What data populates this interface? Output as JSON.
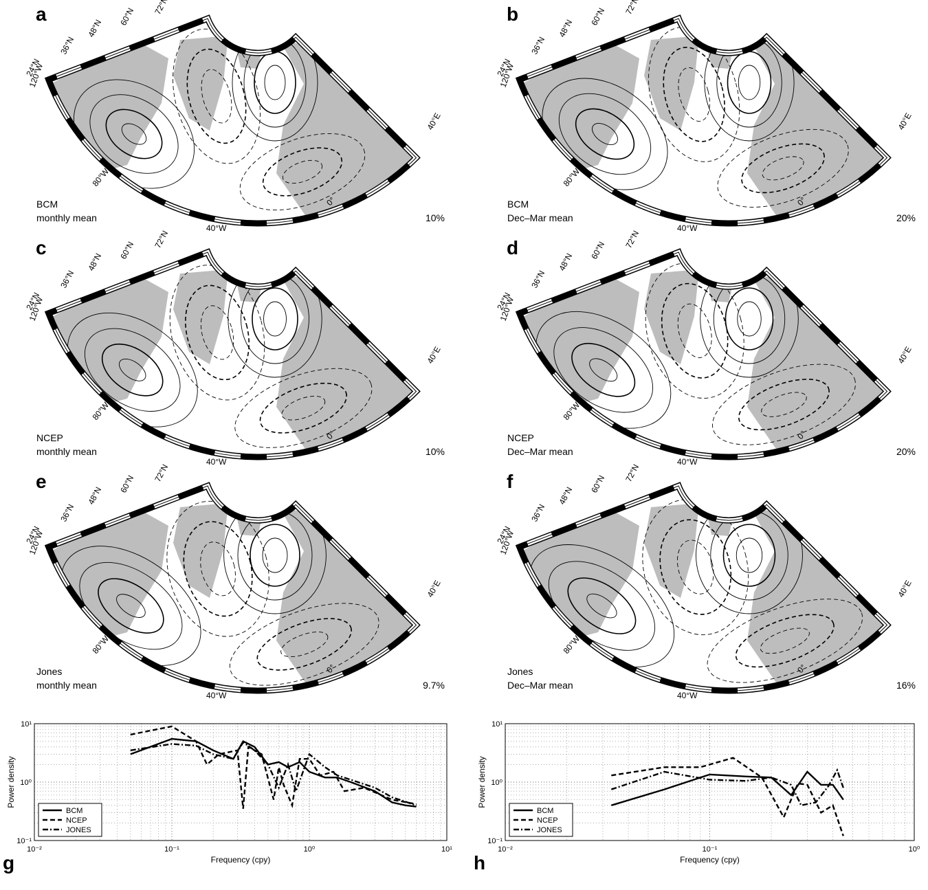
{
  "graticule": {
    "lat_labels": [
      "24°N",
      "36°N",
      "48°N",
      "60°N",
      "72°N"
    ],
    "lon_labels": [
      "120°W",
      "80°W",
      "40°W",
      "0°",
      "40°E"
    ]
  },
  "panels": [
    {
      "label": "a",
      "dataset": "BCM",
      "period": "monthly mean",
      "variance": "10%"
    },
    {
      "label": "b",
      "dataset": "BCM",
      "period": "Dec–Mar mean",
      "variance": "20%"
    },
    {
      "label": "c",
      "dataset": "NCEP",
      "period": "monthly mean",
      "variance": "10%"
    },
    {
      "label": "d",
      "dataset": "NCEP",
      "period": "Dec–Mar mean",
      "variance": "20%"
    },
    {
      "label": "e",
      "dataset": "Jones",
      "period": "monthly mean",
      "variance": "9.7%"
    },
    {
      "label": "f",
      "dataset": "Jones",
      "period": "Dec–Mar mean",
      "variance": "16%"
    }
  ],
  "chart_data": [
    {
      "type": "line",
      "panel_label": "g",
      "xlabel": "Frequency (cpy)",
      "ylabel": "Power density",
      "log": true,
      "grid": true,
      "xlim": [
        0.01,
        10
      ],
      "ylim": [
        0.1,
        10
      ],
      "xticks": [
        {
          "value": 0.01,
          "label": "10⁻²"
        },
        {
          "value": 0.1,
          "label": "10⁻¹"
        },
        {
          "value": 1,
          "label": "10⁰"
        },
        {
          "value": 10,
          "label": "10¹"
        }
      ],
      "yticks": [
        {
          "value": 0.1,
          "label": "10⁻¹"
        },
        {
          "value": 1,
          "label": "10⁰"
        },
        {
          "value": 10,
          "label": "10¹"
        }
      ],
      "series": [
        {
          "name": "BCM",
          "color": "#000000",
          "dash": "solid",
          "x": [
            0.05,
            0.1,
            0.15,
            0.2,
            0.28,
            0.33,
            0.4,
            0.5,
            0.6,
            0.7,
            0.85,
            1,
            1.3,
            1.6,
            2,
            3,
            4,
            5,
            6
          ],
          "values": [
            3,
            5.5,
            5,
            3.5,
            2.5,
            5,
            4,
            2,
            2.2,
            1.8,
            2.2,
            1.5,
            1.2,
            1.2,
            1,
            0.7,
            0.45,
            0.4,
            0.38
          ]
        },
        {
          "name": "NCEP",
          "color": "#000000",
          "dash": "dashed",
          "x": [
            0.05,
            0.1,
            0.15,
            0.18,
            0.22,
            0.3,
            0.33,
            0.36,
            0.45,
            0.55,
            0.6,
            0.65,
            0.75,
            0.85,
            1,
            1.2,
            1.5,
            1.8,
            2.5,
            4,
            6
          ],
          "values": [
            6.5,
            9,
            5,
            2,
            3,
            3.5,
            0.35,
            4,
            3,
            0.5,
            1.8,
            0.9,
            0.4,
            2.5,
            2.5,
            1.3,
            1.5,
            0.7,
            0.8,
            0.5,
            0.42
          ]
        },
        {
          "name": "JONES",
          "color": "#000000",
          "dash": "dashdot",
          "x": [
            0.05,
            0.1,
            0.15,
            0.2,
            0.28,
            0.33,
            0.4,
            0.5,
            0.6,
            0.7,
            0.8,
            1,
            1.3,
            1.6,
            2,
            3,
            4,
            6
          ],
          "values": [
            3.5,
            4.5,
            4.2,
            3,
            2.5,
            4.8,
            3.5,
            2,
            0.8,
            2,
            0.7,
            3,
            1.8,
            1.3,
            1.1,
            0.8,
            0.55,
            0.4
          ]
        }
      ]
    },
    {
      "type": "line",
      "panel_label": "h",
      "xlabel": "Frequency (cpy)",
      "ylabel": "Power density",
      "log": true,
      "grid": true,
      "xlim": [
        0.01,
        1
      ],
      "ylim": [
        0.1,
        10
      ],
      "xticks": [
        {
          "value": 0.01,
          "label": "10⁻²"
        },
        {
          "value": 0.1,
          "label": "10⁻¹"
        },
        {
          "value": 1,
          "label": "10⁰"
        }
      ],
      "yticks": [
        {
          "value": 0.1,
          "label": "10⁻¹"
        },
        {
          "value": 1,
          "label": "10⁰"
        },
        {
          "value": 10,
          "label": "10¹"
        }
      ],
      "series": [
        {
          "name": "BCM",
          "color": "#000000",
          "dash": "solid",
          "x": [
            0.033,
            0.06,
            0.1,
            0.15,
            0.2,
            0.25,
            0.3,
            0.35,
            0.4,
            0.45
          ],
          "values": [
            0.4,
            0.75,
            1.35,
            1.25,
            1.2,
            0.6,
            1.5,
            0.9,
            0.9,
            0.5
          ]
        },
        {
          "name": "NCEP",
          "color": "#000000",
          "dash": "dashed",
          "x": [
            0.033,
            0.06,
            0.09,
            0.13,
            0.18,
            0.23,
            0.27,
            0.3,
            0.35,
            0.4,
            0.45
          ],
          "values": [
            1.3,
            1.8,
            1.8,
            2.6,
            1.2,
            0.25,
            0.95,
            0.9,
            0.3,
            0.4,
            0.12
          ]
        },
        {
          "name": "JONES",
          "color": "#000000",
          "dash": "dashdot",
          "x": [
            0.033,
            0.06,
            0.1,
            0.15,
            0.2,
            0.25,
            0.28,
            0.33,
            0.38,
            0.42,
            0.45
          ],
          "values": [
            0.75,
            1.5,
            1.1,
            1.05,
            1.2,
            0.9,
            0.4,
            0.45,
            0.85,
            1.6,
            0.8
          ]
        }
      ]
    }
  ]
}
